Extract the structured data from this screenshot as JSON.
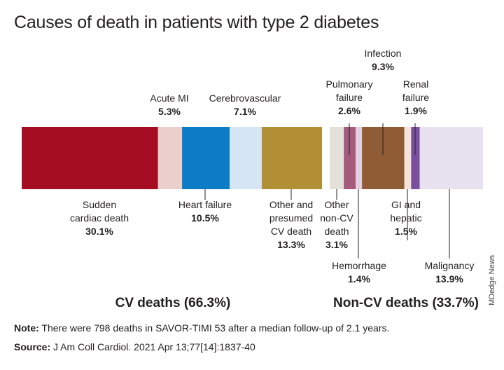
{
  "chart_data": {
    "type": "bar",
    "subtype": "stacked-100",
    "title": "Causes of death in patients with type 2 diabetes",
    "unit": "%",
    "segments": [
      {
        "key": "sudden",
        "label": "Sudden cardiac death",
        "lines": [
          "Sudden",
          "cardiac death"
        ],
        "value": 30.1,
        "pct": "30.1%",
        "color": "#a50e22",
        "group": "cv"
      },
      {
        "key": "acute-mi",
        "label": "Acute MI",
        "lines": [
          "Acute MI"
        ],
        "value": 5.3,
        "pct": "5.3%",
        "color": "#ebcfcc",
        "group": "cv"
      },
      {
        "key": "heart-failure",
        "label": "Heart failure",
        "lines": [
          "Heart failure"
        ],
        "value": 10.5,
        "pct": "10.5%",
        "color": "#0b7cc5",
        "group": "cv"
      },
      {
        "key": "cerebrovascular",
        "label": "Cerebrovascular",
        "lines": [
          "Cerebrovascular"
        ],
        "value": 7.1,
        "pct": "7.1%",
        "color": "#d5e5f3",
        "group": "cv"
      },
      {
        "key": "other-cv",
        "label": "Other and presumed CV death",
        "lines": [
          "Other and",
          "presumed",
          "CV death"
        ],
        "value": 13.3,
        "pct": "13.3%",
        "color": "#b28f35",
        "group": "cv"
      },
      {
        "key": "other-non-cv",
        "label": "Other non-CV death",
        "lines": [
          "Other",
          "non-CV",
          "death"
        ],
        "value": 3.1,
        "pct": "3.1%",
        "color": "#e4e1da",
        "group": "noncv"
      },
      {
        "key": "pulmonary",
        "label": "Pulmonary failure",
        "lines": [
          "Pulmonary",
          "failure"
        ],
        "value": 2.6,
        "pct": "2.6%",
        "color": "#a65a7c",
        "group": "noncv"
      },
      {
        "key": "hemorrhage",
        "label": "Hemorrhage",
        "lines": [
          "Hemorrhage"
        ],
        "value": 1.4,
        "pct": "1.4%",
        "color": "#e2cfe0",
        "group": "noncv"
      },
      {
        "key": "infection",
        "label": "Infection",
        "lines": [
          "Infection"
        ],
        "value": 9.3,
        "pct": "9.3%",
        "color": "#8f5c35",
        "group": "noncv"
      },
      {
        "key": "gi-hepatic",
        "label": "GI and hepatic",
        "lines": [
          "GI and",
          "hepatic"
        ],
        "value": 1.5,
        "pct": "1.5%",
        "color": "#f6e3d8",
        "group": "noncv"
      },
      {
        "key": "renal",
        "label": "Renal failure",
        "lines": [
          "Renal",
          "failure"
        ],
        "value": 1.9,
        "pct": "1.9%",
        "color": "#7a4fa0",
        "group": "noncv"
      },
      {
        "key": "malignancy",
        "label": "Malignancy",
        "lines": [
          "Malignancy"
        ],
        "value": 13.9,
        "pct": "13.9%",
        "color": "#e8e2f0",
        "group": "noncv"
      }
    ],
    "groups": [
      {
        "key": "cv",
        "label": "CV deaths (66.3%)"
      },
      {
        "key": "noncv",
        "label": "Non-CV deaths (33.7%)"
      }
    ]
  },
  "footnote": {
    "note_label": "Note:",
    "note_text": " There were 798 deaths in SAVOR-TIMI 53 after a median follow-up of 2.1 years.",
    "source_label": "Source:",
    "source_text": " J Am Coll Cardiol. 2021 Apr 13;77[14]:1837-40"
  },
  "credit": "MDedge News"
}
